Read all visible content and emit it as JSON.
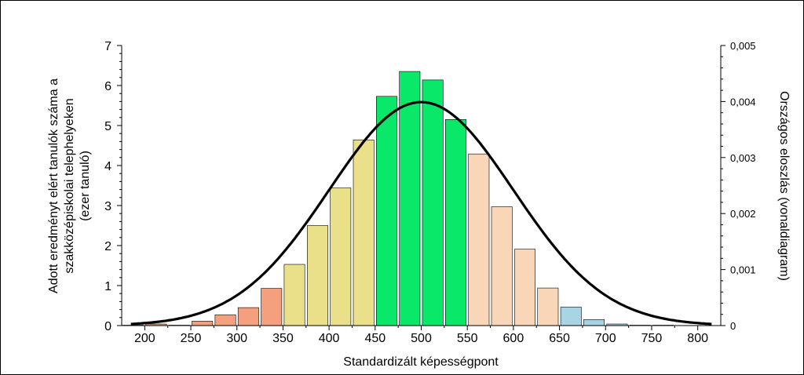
{
  "chart_data": {
    "type": "bar",
    "xlabel": "Standardizált képességpont",
    "ylabel_lines": [
      "Adott eredményt elért tanulók száma a",
      "szakközépiskolai telephelyeken",
      "(ezer tanuló)"
    ],
    "y2label": "Országos eloszlás (vonaldiagram)",
    "xlim": [
      175,
      825
    ],
    "ylim": [
      0,
      7
    ],
    "y2lim": [
      0,
      0.005
    ],
    "x_ticks": [
      "200",
      "250",
      "300",
      "350",
      "400",
      "450",
      "500",
      "550",
      "600",
      "650",
      "700",
      "750",
      "800"
    ],
    "y_ticks": [
      "0",
      "1",
      "2",
      "3",
      "4",
      "5",
      "6",
      "7"
    ],
    "y2_ticks": [
      "0",
      "0,001",
      "0,002",
      "0,003",
      "0,004",
      "0,005"
    ],
    "bars": [
      {
        "x": 187.5,
        "value": 0.01,
        "color": "#f4a07e"
      },
      {
        "x": 212.5,
        "value": 0.04,
        "color": "#f4a07e"
      },
      {
        "x": 237.5,
        "value": 0.01,
        "color": "#f4a07e"
      },
      {
        "x": 262.5,
        "value": 0.11,
        "color": "#f4a07e"
      },
      {
        "x": 287.5,
        "value": 0.27,
        "color": "#f4a07e"
      },
      {
        "x": 312.5,
        "value": 0.45,
        "color": "#f4a07e"
      },
      {
        "x": 337.5,
        "value": 0.93,
        "color": "#f4a07e"
      },
      {
        "x": 362.5,
        "value": 1.53,
        "color": "#ebe08a"
      },
      {
        "x": 387.5,
        "value": 2.5,
        "color": "#ebe08a"
      },
      {
        "x": 412.5,
        "value": 3.44,
        "color": "#ebe08a"
      },
      {
        "x": 437.5,
        "value": 4.64,
        "color": "#ebe08a"
      },
      {
        "x": 462.5,
        "value": 5.73,
        "color": "#0ae86a"
      },
      {
        "x": 487.5,
        "value": 6.35,
        "color": "#0ae86a"
      },
      {
        "x": 512.5,
        "value": 6.14,
        "color": "#0ae86a"
      },
      {
        "x": 537.5,
        "value": 5.15,
        "color": "#0ae86a"
      },
      {
        "x": 562.5,
        "value": 4.29,
        "color": "#fad6b8"
      },
      {
        "x": 587.5,
        "value": 2.97,
        "color": "#fad6b8"
      },
      {
        "x": 612.5,
        "value": 1.91,
        "color": "#fad6b8"
      },
      {
        "x": 637.5,
        "value": 0.94,
        "color": "#fad6b8"
      },
      {
        "x": 662.5,
        "value": 0.46,
        "color": "#a8d4e3"
      },
      {
        "x": 687.5,
        "value": 0.15,
        "color": "#a8d4e3"
      },
      {
        "x": 712.5,
        "value": 0.04,
        "color": "#a8d4e3"
      },
      {
        "x": 737.5,
        "value": 0.01,
        "color": "#a8d4e3"
      },
      {
        "x": 762.5,
        "value": 0.01,
        "color": "#a8d4e3"
      }
    ],
    "line": {
      "mean": 500,
      "sd": 100,
      "color": "#000000",
      "x_range": [
        185,
        815
      ]
    }
  }
}
